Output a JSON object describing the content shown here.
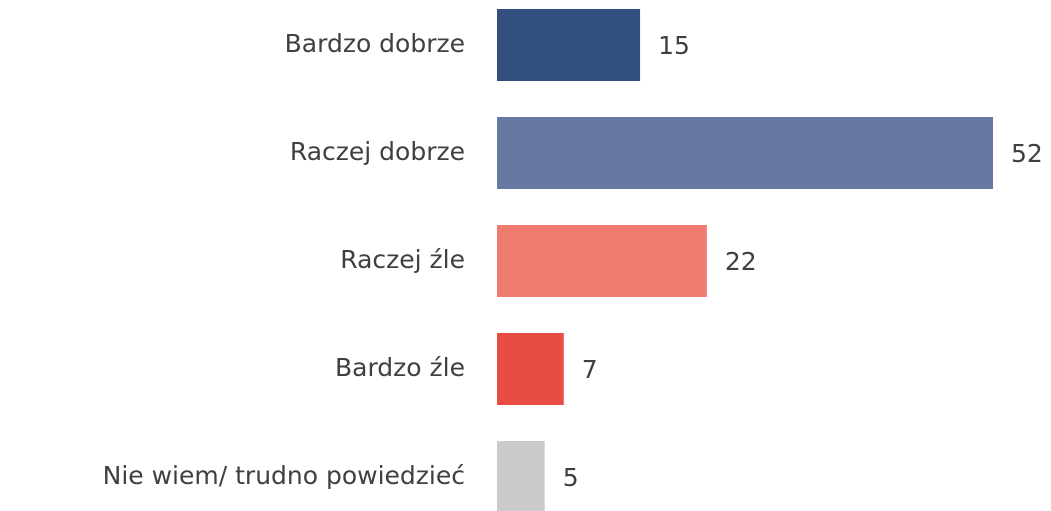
{
  "chart_data": {
    "type": "hbar",
    "categories": [
      "Bardzo dobrze",
      "Raczej dobrze",
      "Raczej źle",
      "Bardzo źle",
      "Nie wiem/ trudno powiedzieć"
    ],
    "values": [
      15,
      52,
      22,
      7,
      5
    ],
    "colors": [
      "#334f80",
      "#6779a2",
      "#ef7b71",
      "#e84c43",
      "#cbcbcb"
    ]
  }
}
